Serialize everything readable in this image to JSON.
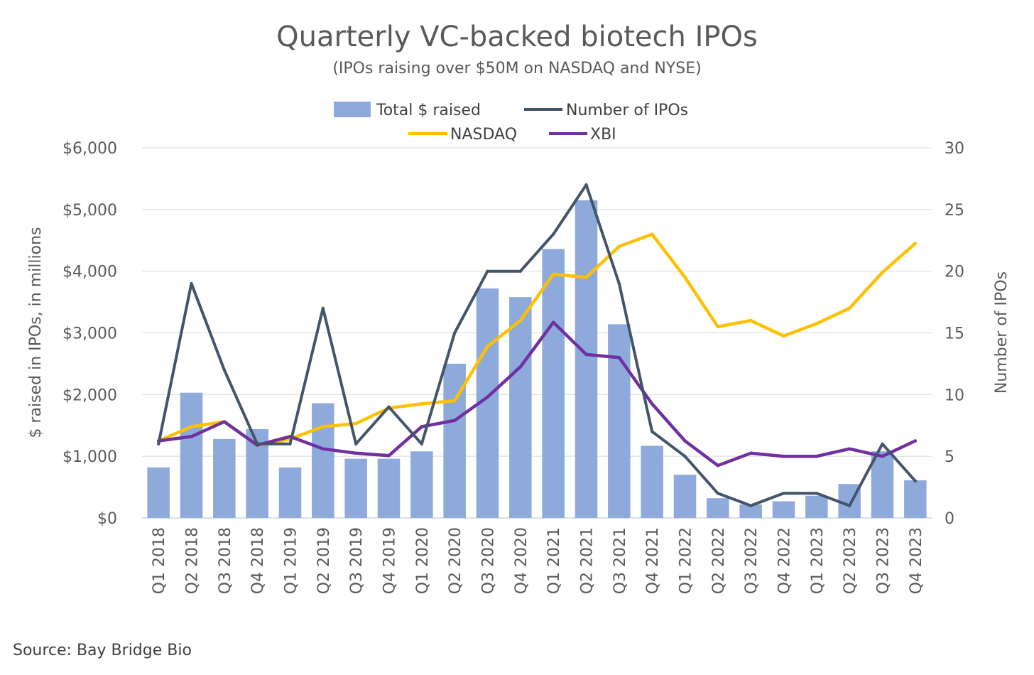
{
  "chart_data": {
    "type": "bar+line",
    "title": "Quarterly VC-backed biotech IPOs",
    "subtitle": "(IPOs raising over $50M on NASDAQ and NYSE)",
    "categories": [
      "Q1 2018",
      "Q2 2018",
      "Q3 2018",
      "Q4 2018",
      "Q1 2019",
      "Q2 2019",
      "Q3 2019",
      "Q4 2019",
      "Q1 2020",
      "Q2 2020",
      "Q3 2020",
      "Q4 2020",
      "Q1 2021",
      "Q2 2021",
      "Q3 2021",
      "Q4 2021",
      "Q1 2022",
      "Q2 2022",
      "Q3 2022",
      "Q4 2022",
      "Q1 2023",
      "Q2 2023",
      "Q3 2023",
      "Q4 2023"
    ],
    "ylabel": "$ raised in IPOs, in millions",
    "y2label": "Number of IPOs",
    "ylim": [
      0,
      6000
    ],
    "y2lim": [
      0,
      30
    ],
    "yticks": [
      "$0",
      "$1,000",
      "$2,000",
      "$3,000",
      "$4,000",
      "$5,000",
      "$6,000"
    ],
    "y2ticks": [
      "0",
      "5",
      "10",
      "15",
      "20",
      "25",
      "30"
    ],
    "grid": true,
    "legend_position": "top",
    "series": [
      {
        "name": "Total $ raised",
        "type": "bar",
        "axis": "left",
        "color": "#8eaadb",
        "values": [
          820,
          2030,
          1280,
          1440,
          820,
          1860,
          960,
          960,
          1080,
          2500,
          3720,
          3580,
          4360,
          5150,
          3140,
          1170,
          700,
          320,
          220,
          270,
          360,
          550,
          1080,
          610
        ]
      },
      {
        "name": "Number of IPOs",
        "type": "line",
        "axis": "right",
        "color": "#44546a",
        "values": [
          6,
          19,
          12,
          6,
          6,
          17,
          6,
          9,
          6,
          15,
          20,
          20,
          23,
          27,
          19,
          7,
          5,
          2,
          1,
          2,
          2,
          1,
          6,
          3
        ]
      },
      {
        "name": "NASDAQ",
        "type": "line",
        "axis": "left",
        "color": "#ffc000",
        "values": [
          1250,
          1480,
          1560,
          1180,
          1280,
          1480,
          1530,
          1780,
          1850,
          1900,
          2780,
          3200,
          3950,
          3900,
          4400,
          4600,
          3900,
          3100,
          3200,
          2950,
          3150,
          3400,
          3980,
          4450
        ]
      },
      {
        "name": "XBI",
        "type": "line",
        "axis": "left",
        "color": "#7030a0",
        "values": [
          1250,
          1320,
          1560,
          1180,
          1320,
          1120,
          1050,
          1010,
          1480,
          1580,
          1960,
          2450,
          3170,
          2650,
          2600,
          1850,
          1250,
          850,
          1050,
          1000,
          1000,
          1120,
          1000,
          1250
        ]
      }
    ]
  },
  "source": "Source: Bay Bridge Bio",
  "colors": {
    "bar": "#8eaadb",
    "count_line": "#44546a",
    "nasdaq": "#ffc000",
    "xbi": "#7030a0",
    "grid": "#d9d9d9"
  }
}
